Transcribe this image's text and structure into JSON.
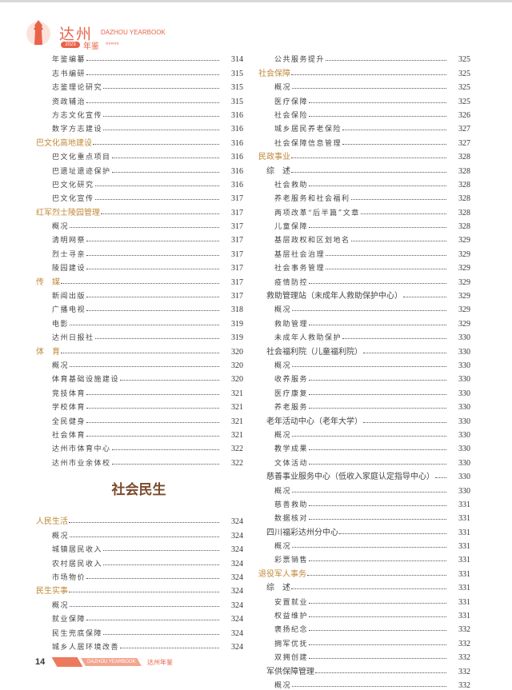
{
  "header": {
    "brand_cn": "达州",
    "brand_en": "DAZHOU YEARBOOK",
    "year": "2023",
    "yearbook": "年鉴",
    "arrows": "«««««",
    "accent": "#e8634a"
  },
  "left": [
    {
      "level": 2,
      "text": "年鉴编纂",
      "page": "314"
    },
    {
      "level": 2,
      "text": "志书编研",
      "page": "315"
    },
    {
      "level": 2,
      "text": "志鉴理论研究",
      "page": "315"
    },
    {
      "level": 2,
      "text": "资政辅治",
      "page": "315"
    },
    {
      "level": 2,
      "text": "方志文化宣传",
      "page": "316"
    },
    {
      "level": 2,
      "text": "数字方志建设",
      "page": "316"
    },
    {
      "level": 0,
      "text": "巴文化高地建设",
      "page": "316"
    },
    {
      "level": 2,
      "text": "巴文化重点项目",
      "page": "316"
    },
    {
      "level": 2,
      "text": "巴遗址遗迹保护",
      "page": "316"
    },
    {
      "level": 2,
      "text": "巴文化研究",
      "page": "316"
    },
    {
      "level": 2,
      "text": "巴文化宣传",
      "page": "317"
    },
    {
      "level": 0,
      "text": "红军烈士陵园管理",
      "page": "317"
    },
    {
      "level": 2,
      "text": "概况",
      "page": "317"
    },
    {
      "level": 2,
      "text": "清明网祭",
      "page": "317"
    },
    {
      "level": 2,
      "text": "烈士寻亲",
      "page": "317"
    },
    {
      "level": 2,
      "text": "陵园建设",
      "page": "317"
    },
    {
      "level": 0,
      "text": "传　媒",
      "page": "317"
    },
    {
      "level": 2,
      "text": "新闻出版",
      "page": "317"
    },
    {
      "level": 2,
      "text": "广播电视",
      "page": "318"
    },
    {
      "level": 2,
      "text": "电影",
      "page": "319"
    },
    {
      "level": 2,
      "text": "达州日报社",
      "page": "319"
    },
    {
      "level": 0,
      "text": "体　育",
      "page": "320"
    },
    {
      "level": 2,
      "text": "概况",
      "page": "320"
    },
    {
      "level": 2,
      "text": "体育基础设施建设",
      "page": "320"
    },
    {
      "level": 2,
      "text": "竞技体育",
      "page": "321"
    },
    {
      "level": 2,
      "text": "学校体育",
      "page": "321"
    },
    {
      "level": 2,
      "text": "全民健身",
      "page": "321"
    },
    {
      "level": 2,
      "text": "社会体育",
      "page": "321"
    },
    {
      "level": 2,
      "text": "达州市体育中心",
      "page": "322"
    },
    {
      "level": 2,
      "text": "达州市业余体校",
      "page": "322"
    }
  ],
  "part_title": "社会民生",
  "left2": [
    {
      "level": 0,
      "text": "人民生活",
      "page": "324"
    },
    {
      "level": 2,
      "text": "概况",
      "page": "324"
    },
    {
      "level": 2,
      "text": "城镇居民收入",
      "page": "324"
    },
    {
      "level": 2,
      "text": "农村居民收入",
      "page": "324"
    },
    {
      "level": 2,
      "text": "市场物价",
      "page": "324"
    },
    {
      "level": 0,
      "text": "民生实事",
      "page": "324"
    },
    {
      "level": 2,
      "text": "概况",
      "page": "324"
    },
    {
      "level": 2,
      "text": "就业保障",
      "page": "324"
    },
    {
      "level": 2,
      "text": "民生兜底保障",
      "page": "324"
    },
    {
      "level": 2,
      "text": "城乡人居环境改善",
      "page": "324"
    }
  ],
  "right": [
    {
      "level": 2,
      "text": "公共服务提升",
      "page": "325"
    },
    {
      "level": 0,
      "text": "社会保障",
      "page": "325"
    },
    {
      "level": 2,
      "text": "概况",
      "page": "325"
    },
    {
      "level": 2,
      "text": "医疗保障",
      "page": "325"
    },
    {
      "level": 2,
      "text": "社会保险",
      "page": "326"
    },
    {
      "level": 2,
      "text": "城乡居民养老保险",
      "page": "327"
    },
    {
      "level": 2,
      "text": "社会保障信息管理",
      "page": "327"
    },
    {
      "level": 0,
      "text": "民政事业",
      "page": "328"
    },
    {
      "level": 1,
      "text": "综　述",
      "page": "328"
    },
    {
      "level": 2,
      "text": "社会救助",
      "page": "328"
    },
    {
      "level": 2,
      "text": "养老服务和社会福利",
      "page": "328"
    },
    {
      "level": 2,
      "text": "两项改革“后半篇”文章",
      "page": "328"
    },
    {
      "level": 2,
      "text": "儿童保障",
      "page": "328"
    },
    {
      "level": 2,
      "text": "基层政权和区划地名",
      "page": "329"
    },
    {
      "level": 2,
      "text": "基层社会治理",
      "page": "329"
    },
    {
      "level": 2,
      "text": "社会事务管理",
      "page": "329"
    },
    {
      "level": 2,
      "text": "疫情防控",
      "page": "329"
    },
    {
      "level": 1,
      "text": "救助管理站（未成年人救助保护中心）",
      "page": "329"
    },
    {
      "level": 2,
      "text": "概况",
      "page": "329"
    },
    {
      "level": 2,
      "text": "救助管理",
      "page": "329"
    },
    {
      "level": 2,
      "text": "未成年人救助保护",
      "page": "330"
    },
    {
      "level": 1,
      "text": "社会福利院（儿童福利院）",
      "page": "330"
    },
    {
      "level": 2,
      "text": "概况",
      "page": "330"
    },
    {
      "level": 2,
      "text": "收养服务",
      "page": "330"
    },
    {
      "level": 2,
      "text": "医疗康复",
      "page": "330"
    },
    {
      "level": 2,
      "text": "养老服务",
      "page": "330"
    },
    {
      "level": 1,
      "text": "老年活动中心（老年大学）",
      "page": "330"
    },
    {
      "level": 2,
      "text": "概况",
      "page": "330"
    },
    {
      "level": 2,
      "text": "教学成果",
      "page": "330"
    },
    {
      "level": 2,
      "text": "文体活动",
      "page": "330"
    },
    {
      "level": 1,
      "text": "慈善事业服务中心（低收入家庭认定指导中心）",
      "page": "330"
    },
    {
      "level": 2,
      "text": "概况",
      "page": "330"
    },
    {
      "level": 2,
      "text": "慈善救助",
      "page": "331"
    },
    {
      "level": 2,
      "text": "数据核对",
      "page": "331"
    },
    {
      "level": 1,
      "text": "四川福彩达州分中心",
      "page": "331"
    },
    {
      "level": 2,
      "text": "概况",
      "page": "331"
    },
    {
      "level": 2,
      "text": "彩票销售",
      "page": "331"
    },
    {
      "level": 0,
      "text": "退役军人事务",
      "page": "331"
    },
    {
      "level": 1,
      "text": "综　述",
      "page": "331"
    },
    {
      "level": 2,
      "text": "安置就业",
      "page": "331"
    },
    {
      "level": 2,
      "text": "权益维护",
      "page": "331"
    },
    {
      "level": 2,
      "text": "褒扬纪念",
      "page": "332"
    },
    {
      "level": 2,
      "text": "拥军优抚",
      "page": "332"
    },
    {
      "level": 2,
      "text": "双拥创建",
      "page": "332"
    },
    {
      "level": 1,
      "text": "军供保障管理",
      "page": "332"
    },
    {
      "level": 2,
      "text": "概况",
      "page": "332"
    }
  ],
  "footer": {
    "page_number": "14",
    "brand_en": "DAZHOU YEARBOOK",
    "brand_cn": "达州年鉴"
  }
}
